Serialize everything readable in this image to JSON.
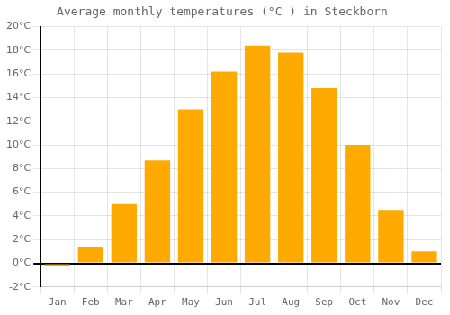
{
  "chart_data": {
    "type": "bar",
    "title": "Average monthly temperatures (°C ) in Steckborn",
    "categories": [
      "Jan",
      "Feb",
      "Mar",
      "Apr",
      "May",
      "Jun",
      "Jul",
      "Aug",
      "Sep",
      "Oct",
      "Nov",
      "Dec"
    ],
    "values": [
      -0.2,
      1.4,
      5.0,
      8.7,
      13.0,
      16.2,
      18.4,
      17.8,
      14.8,
      10.0,
      4.5,
      1.0
    ],
    "color": "#FFAA00",
    "ylim": [
      -2,
      20
    ],
    "yticks": [
      {
        "value": -2,
        "label": "-2°C"
      },
      {
        "value": 0,
        "label": "0°C"
      },
      {
        "value": 2,
        "label": "2°C"
      },
      {
        "value": 4,
        "label": "4°C"
      },
      {
        "value": 6,
        "label": "6°C"
      },
      {
        "value": 8,
        "label": "8°C"
      },
      {
        "value": 10,
        "label": "10°C"
      },
      {
        "value": 12,
        "label": "12°C"
      },
      {
        "value": 14,
        "label": "14°C"
      },
      {
        "value": 16,
        "label": "16°C"
      },
      {
        "value": 18,
        "label": "18°C"
      },
      {
        "value": 20,
        "label": "20°C"
      }
    ],
    "grid": true
  }
}
